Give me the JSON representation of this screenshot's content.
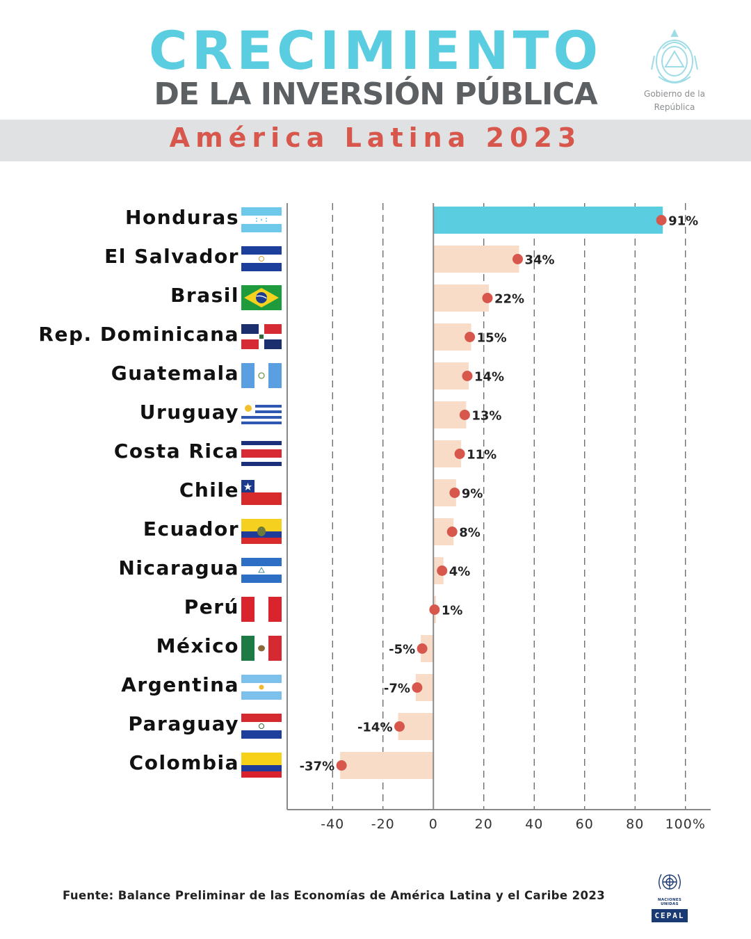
{
  "header": {
    "title": "CRECIMIENTO",
    "subtitle": "DE LA INVERSIÓN PÚBLICA",
    "band_text": "América Latina 2023",
    "gov_line1": "Gobierno de la",
    "gov_line2": "República"
  },
  "colors": {
    "title": "#5bcde0",
    "subtitle": "#5d6063",
    "band_text": "#d8574c",
    "highlight_bar": "#5bcde0",
    "bar": "#f8dcc8",
    "dot": "#d8574c"
  },
  "chart_data": {
    "type": "bar",
    "orientation": "horizontal",
    "title": "Crecimiento de la inversión pública — América Latina 2023",
    "categories": [
      "Honduras",
      "El Salvador",
      "Brasil",
      "Rep. Dominicana",
      "Guatemala",
      "Uruguay",
      "Costa Rica",
      "Chile",
      "Ecuador",
      "Nicaragua",
      "Perú",
      "México",
      "Argentina",
      "Paraguay",
      "Colombia"
    ],
    "values": [
      91,
      34,
      22,
      15,
      14,
      13,
      11,
      9,
      8,
      4,
      1,
      -5,
      -7,
      -14,
      -37
    ],
    "value_labels": [
      "91%",
      "34%",
      "22%",
      "15%",
      "14%",
      "13%",
      "11%",
      "9%",
      "8%",
      "4%",
      "1%",
      "-5%",
      "-7%",
      "-14%",
      "-37%"
    ],
    "highlight": "Honduras",
    "xlim": [
      -58,
      110
    ],
    "xticks": [
      -40,
      -20,
      0,
      20,
      40,
      60,
      80,
      100
    ],
    "xtick_labels": [
      "-40",
      "-20",
      "0",
      "20",
      "40",
      "60",
      "80",
      "100%"
    ],
    "grid": true,
    "xlabel": "",
    "ylabel": ""
  },
  "flags": [
    {
      "country": "Honduras",
      "icon": "flag-honduras-icon"
    },
    {
      "country": "El Salvador",
      "icon": "flag-el-salvador-icon"
    },
    {
      "country": "Brasil",
      "icon": "flag-brasil-icon"
    },
    {
      "country": "Rep. Dominicana",
      "icon": "flag-rep-dominicana-icon"
    },
    {
      "country": "Guatemala",
      "icon": "flag-guatemala-icon"
    },
    {
      "country": "Uruguay",
      "icon": "flag-uruguay-icon"
    },
    {
      "country": "Costa Rica",
      "icon": "flag-costa-rica-icon"
    },
    {
      "country": "Chile",
      "icon": "flag-chile-icon"
    },
    {
      "country": "Ecuador",
      "icon": "flag-ecuador-icon"
    },
    {
      "country": "Nicaragua",
      "icon": "flag-nicaragua-icon"
    },
    {
      "country": "Perú",
      "icon": "flag-peru-icon"
    },
    {
      "country": "México",
      "icon": "flag-mexico-icon"
    },
    {
      "country": "Argentina",
      "icon": "flag-argentina-icon"
    },
    {
      "country": "Paraguay",
      "icon": "flag-paraguay-icon"
    },
    {
      "country": "Colombia",
      "icon": "flag-colombia-icon"
    }
  ],
  "footer": {
    "source": "Fuente: Balance Preliminar de las Economías de América Latina y el Caribe 2023",
    "un_text": "NACIONES UNIDAS",
    "cepal_text": "CEPAL"
  }
}
